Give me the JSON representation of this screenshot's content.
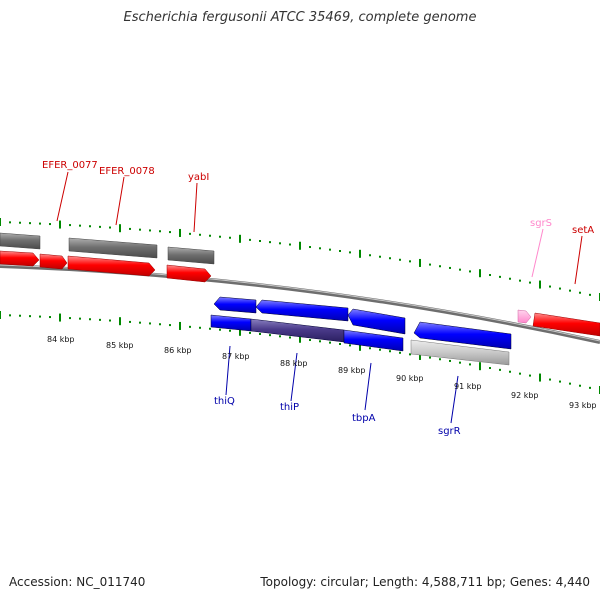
{
  "title": "Escherichia fergusonii ATCC 35469, complete genome",
  "footer": {
    "accession": "Accession: NC_011740",
    "summary": "Topology: circular; Length: 4,588,711 bp; Genes: 4,440"
  },
  "colors": {
    "forward_gene": "#ff0000",
    "reverse_gene": "#0000ff",
    "label_forward": "#cc0000",
    "label_reverse": "#0000aa",
    "label_rna": "#ff88cc",
    "rna": "#ffaadd",
    "cds_dark": "#707070",
    "cds_light": "#c8c8c8",
    "tick": "#008800",
    "backbone": "#888888"
  },
  "scale_ticks": [
    "84 kbp",
    "85 kbp",
    "86 kbp",
    "87 kbp",
    "88 kbp",
    "89 kbp",
    "90 kbp",
    "91 kbp",
    "92 kbp",
    "93 kbp"
  ],
  "gene_labels": [
    {
      "name": "EFER_0077",
      "strand": "forward"
    },
    {
      "name": "EFER_0078",
      "strand": "forward"
    },
    {
      "name": "yabI",
      "strand": "forward"
    },
    {
      "name": "sgrS",
      "strand": "rna"
    },
    {
      "name": "setA",
      "strand": "forward"
    },
    {
      "name": "thiQ",
      "strand": "reverse"
    },
    {
      "name": "thiP",
      "strand": "reverse"
    },
    {
      "name": "tbpA",
      "strand": "reverse"
    },
    {
      "name": "sgrR",
      "strand": "reverse"
    }
  ]
}
